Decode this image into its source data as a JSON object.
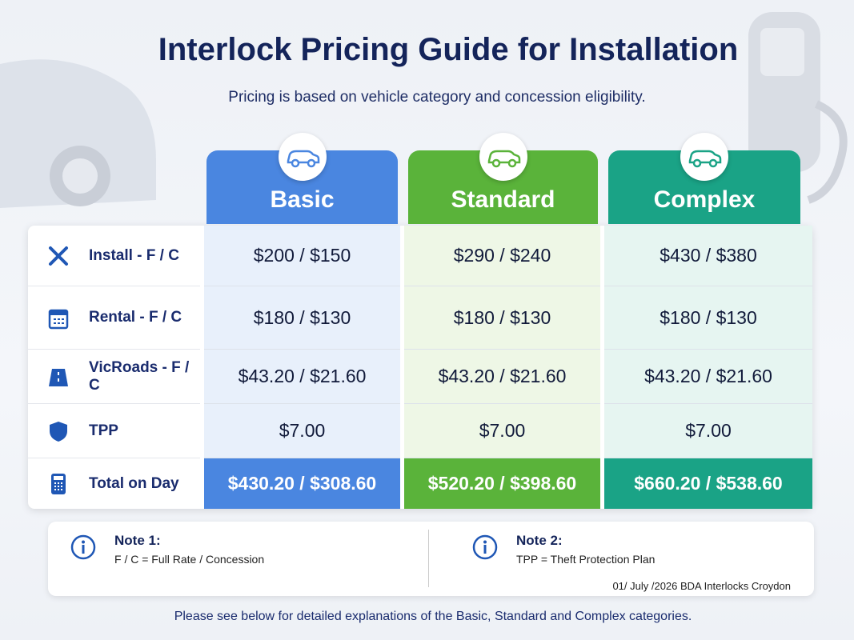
{
  "header": {
    "title": "Interlock Pricing Guide for Installation",
    "subtitle": "Pricing is based on vehicle category and concession eligibility."
  },
  "table": {
    "columns": [
      "Basic",
      "Standard",
      "Complex"
    ],
    "rows": [
      {
        "label": "Install - F / C",
        "cells": [
          "$200 / $150",
          "$290 / $240",
          "$430 / $380"
        ]
      },
      {
        "label": "Rental - F / C",
        "cells": [
          "$180 / $130",
          "$180 / $130",
          "$180 / $130"
        ]
      },
      {
        "label": "VicRoads - F / C",
        "cells": [
          "$43.20 / $21.60",
          "$43.20 / $21.60",
          "$43.20 / $21.60"
        ]
      },
      {
        "label": "TPP",
        "cells": [
          "$7.00",
          "$7.00",
          "$7.00"
        ]
      },
      {
        "label": "Total on Day",
        "cells": [
          "$430.20 / $308.60",
          "$520.20 / $398.60",
          "$660.20 / $538.60"
        ]
      }
    ]
  },
  "notes": [
    {
      "title": "Note 1:",
      "text": "F / C = Full Rate / Concession"
    },
    {
      "title": "Note 2:",
      "text": "TPP = Theft Protection Plan"
    }
  ],
  "footer": {
    "date": "01/ July /2026 BDA Interlocks Croydon",
    "text": "Please see below for detailed explanations of the Basic, Standard and Complex categories."
  }
}
